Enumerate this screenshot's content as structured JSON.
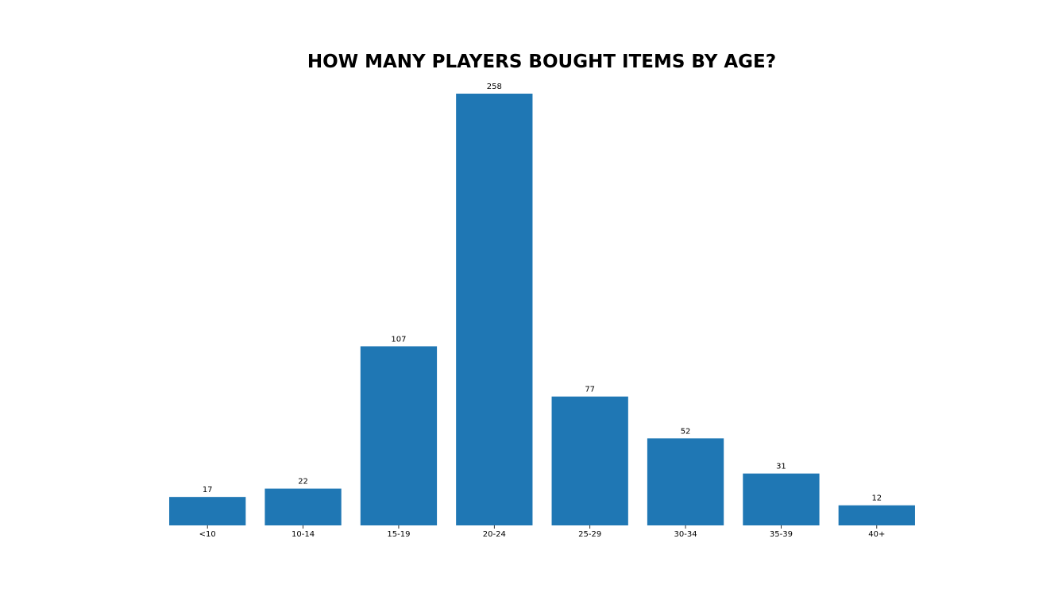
{
  "chart_data": {
    "type": "bar",
    "title": "HOW MANY PLAYERS BOUGHT ITEMS BY AGE?",
    "xlabel": "",
    "ylabel": "",
    "categories": [
      "<10",
      "10-14",
      "15-19",
      "20-24",
      "25-29",
      "30-34",
      "35-39",
      "40+"
    ],
    "values": [
      17,
      22,
      107,
      258,
      77,
      52,
      31,
      12
    ],
    "data_labels": [
      "17",
      "22",
      "107",
      "258",
      "77",
      "52",
      "31",
      "12"
    ],
    "ylim": [
      0,
      258
    ],
    "grid": false,
    "legend": "none",
    "y_axis_visible": false,
    "bar_color": "#1f77b4"
  }
}
